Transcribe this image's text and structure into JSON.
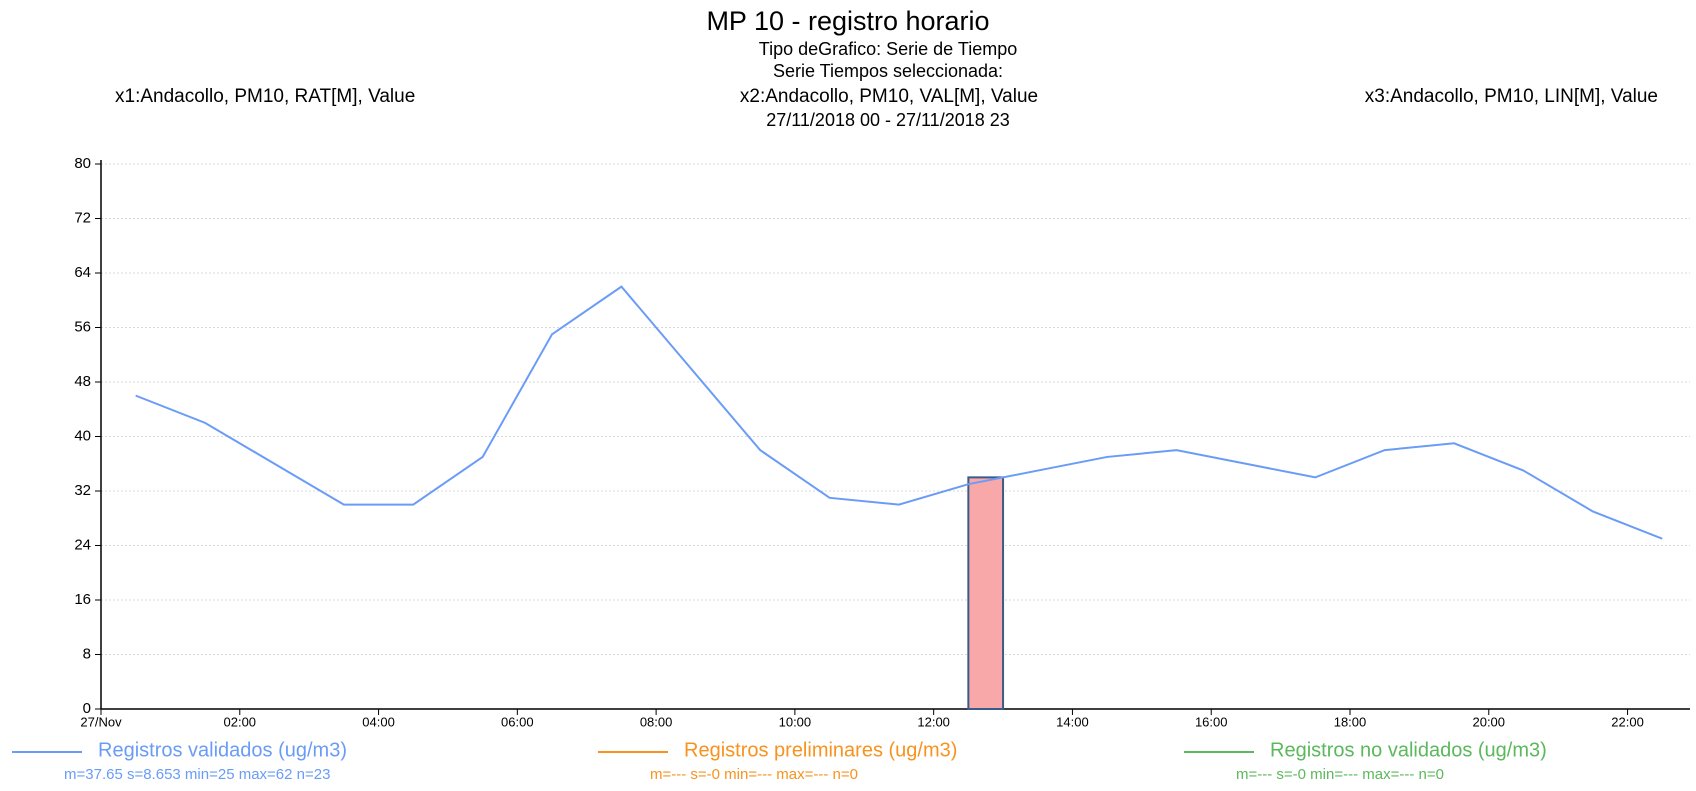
{
  "chart_data": {
    "type": "line",
    "title": "MP 10 - registro horario",
    "subtitle": [
      "Tipo deGrafico: Serie de Tiempo",
      "Serie Tiempos seleccionada:",
      "27/11/2018 00 - 27/11/2018 23"
    ],
    "stations": [
      "x1:Andacollo, PM10, RAT[M], Value",
      "x2:Andacollo, PM10, VAL[M], Value",
      "x3:Andacollo, PM10, LIN[M], Value"
    ],
    "x": [
      0.5,
      1.5,
      2.5,
      3.5,
      4.5,
      5.5,
      6.5,
      7.5,
      8.5,
      9.5,
      10.5,
      11.5,
      12.5,
      13.5,
      14.5,
      15.5,
      16.5,
      17.5,
      18.5,
      19.5,
      20.5,
      21.5,
      22.5
    ],
    "series": [
      {
        "name": "Registros validados (ug/m3)",
        "color": "#6a9cf7",
        "stats": "m=37.65 s=8.653 min=25 max=62 n=23",
        "values": [
          46,
          42,
          36,
          30,
          30,
          37,
          55,
          62,
          50,
          38,
          31,
          30,
          33,
          35,
          37,
          38,
          36,
          34,
          38,
          39,
          35,
          29,
          25
        ]
      },
      {
        "name": "Registros preliminares (ug/m3)",
        "color": "#f7931e",
        "stats": "m=--- s=-0 min=--- max=--- n=0",
        "values": [
          null,
          null,
          null,
          null,
          null,
          null,
          null,
          null,
          null,
          null,
          null,
          null,
          null,
          null,
          null,
          null,
          null,
          null,
          null,
          null,
          null,
          null,
          null
        ]
      },
      {
        "name": "Registros no validados (ug/m3)",
        "color": "#5cb85c",
        "stats": "m=--- s=-0 min=--- max=--- n=0",
        "values": [
          null,
          null,
          null,
          null,
          null,
          null,
          null,
          null,
          null,
          null,
          null,
          null,
          null,
          null,
          null,
          null,
          null,
          null,
          null,
          null,
          null,
          null,
          null
        ]
      }
    ],
    "highlight": {
      "x": [
        12.5,
        13
      ],
      "value": 34,
      "color": "#f8a8a8"
    },
    "xlim": [
      0,
      22.9
    ],
    "xticks": [
      {
        "value": 0,
        "label": "27/Nov"
      },
      {
        "value": 2,
        "label": "02:00"
      },
      {
        "value": 4,
        "label": "04:00"
      },
      {
        "value": 6,
        "label": "06:00"
      },
      {
        "value": 8,
        "label": "08:00"
      },
      {
        "value": 10,
        "label": "10:00"
      },
      {
        "value": 12,
        "label": "12:00"
      },
      {
        "value": 14,
        "label": "14:00"
      },
      {
        "value": 16,
        "label": "16:00"
      },
      {
        "value": 18,
        "label": "18:00"
      },
      {
        "value": 20,
        "label": "20:00"
      },
      {
        "value": 22,
        "label": "22:00"
      }
    ],
    "ylim": [
      0,
      80
    ],
    "yticks": [
      0,
      8,
      16,
      24,
      32,
      40,
      48,
      56,
      64,
      72,
      80
    ],
    "grid": true
  }
}
